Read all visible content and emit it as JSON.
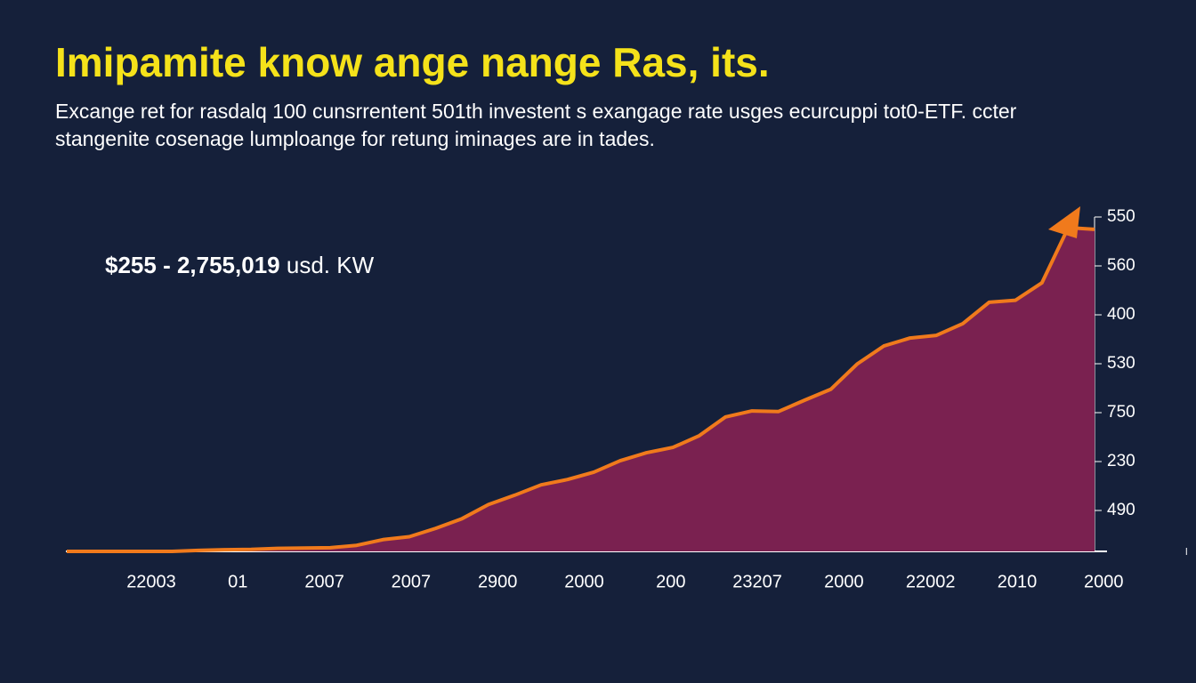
{
  "title": "Imipamite know ange nange Ras, its.",
  "subtitle_lines": [
    "Excange ret for rasdalq 100 cunsrrentent 501th investent s exangage rate usges ecurcuppi tot0-ETF. ccter",
    "stangenite cosenage lumploange for retung iminages are in tades."
  ],
  "chart_data": {
    "type": "area",
    "annotation": {
      "bold": "$255 - 2,755,019",
      "rest": "usd. KW"
    },
    "x_labels": [
      "22003",
      "01",
      "2007",
      "2007",
      "2900",
      "2000",
      "200",
      "23207",
      "2000",
      "22002",
      "2010",
      "2000"
    ],
    "y_labels": [
      "550",
      "560",
      "400",
      "530",
      "750",
      "230",
      "490"
    ],
    "ylim": [
      0,
      100
    ],
    "series": [
      {
        "color": "#f07a1c",
        "fill": "#7a2150",
        "values": [
          0,
          0,
          0,
          0,
          0,
          0.3,
          0.5,
          0.6,
          0.9,
          1.0,
          1.1,
          1.8,
          3.5,
          4.4,
          6.9,
          9.8,
          14,
          16.8,
          19.9,
          21.5,
          23.7,
          27.1,
          29.5,
          31.1,
          34.6,
          40.2,
          42.0,
          41.8,
          45.2,
          48.5,
          56.1,
          61.4,
          63.8,
          64.6,
          68.1,
          74.5,
          75.1,
          80.3,
          96.8,
          96.3
        ]
      }
    ]
  }
}
